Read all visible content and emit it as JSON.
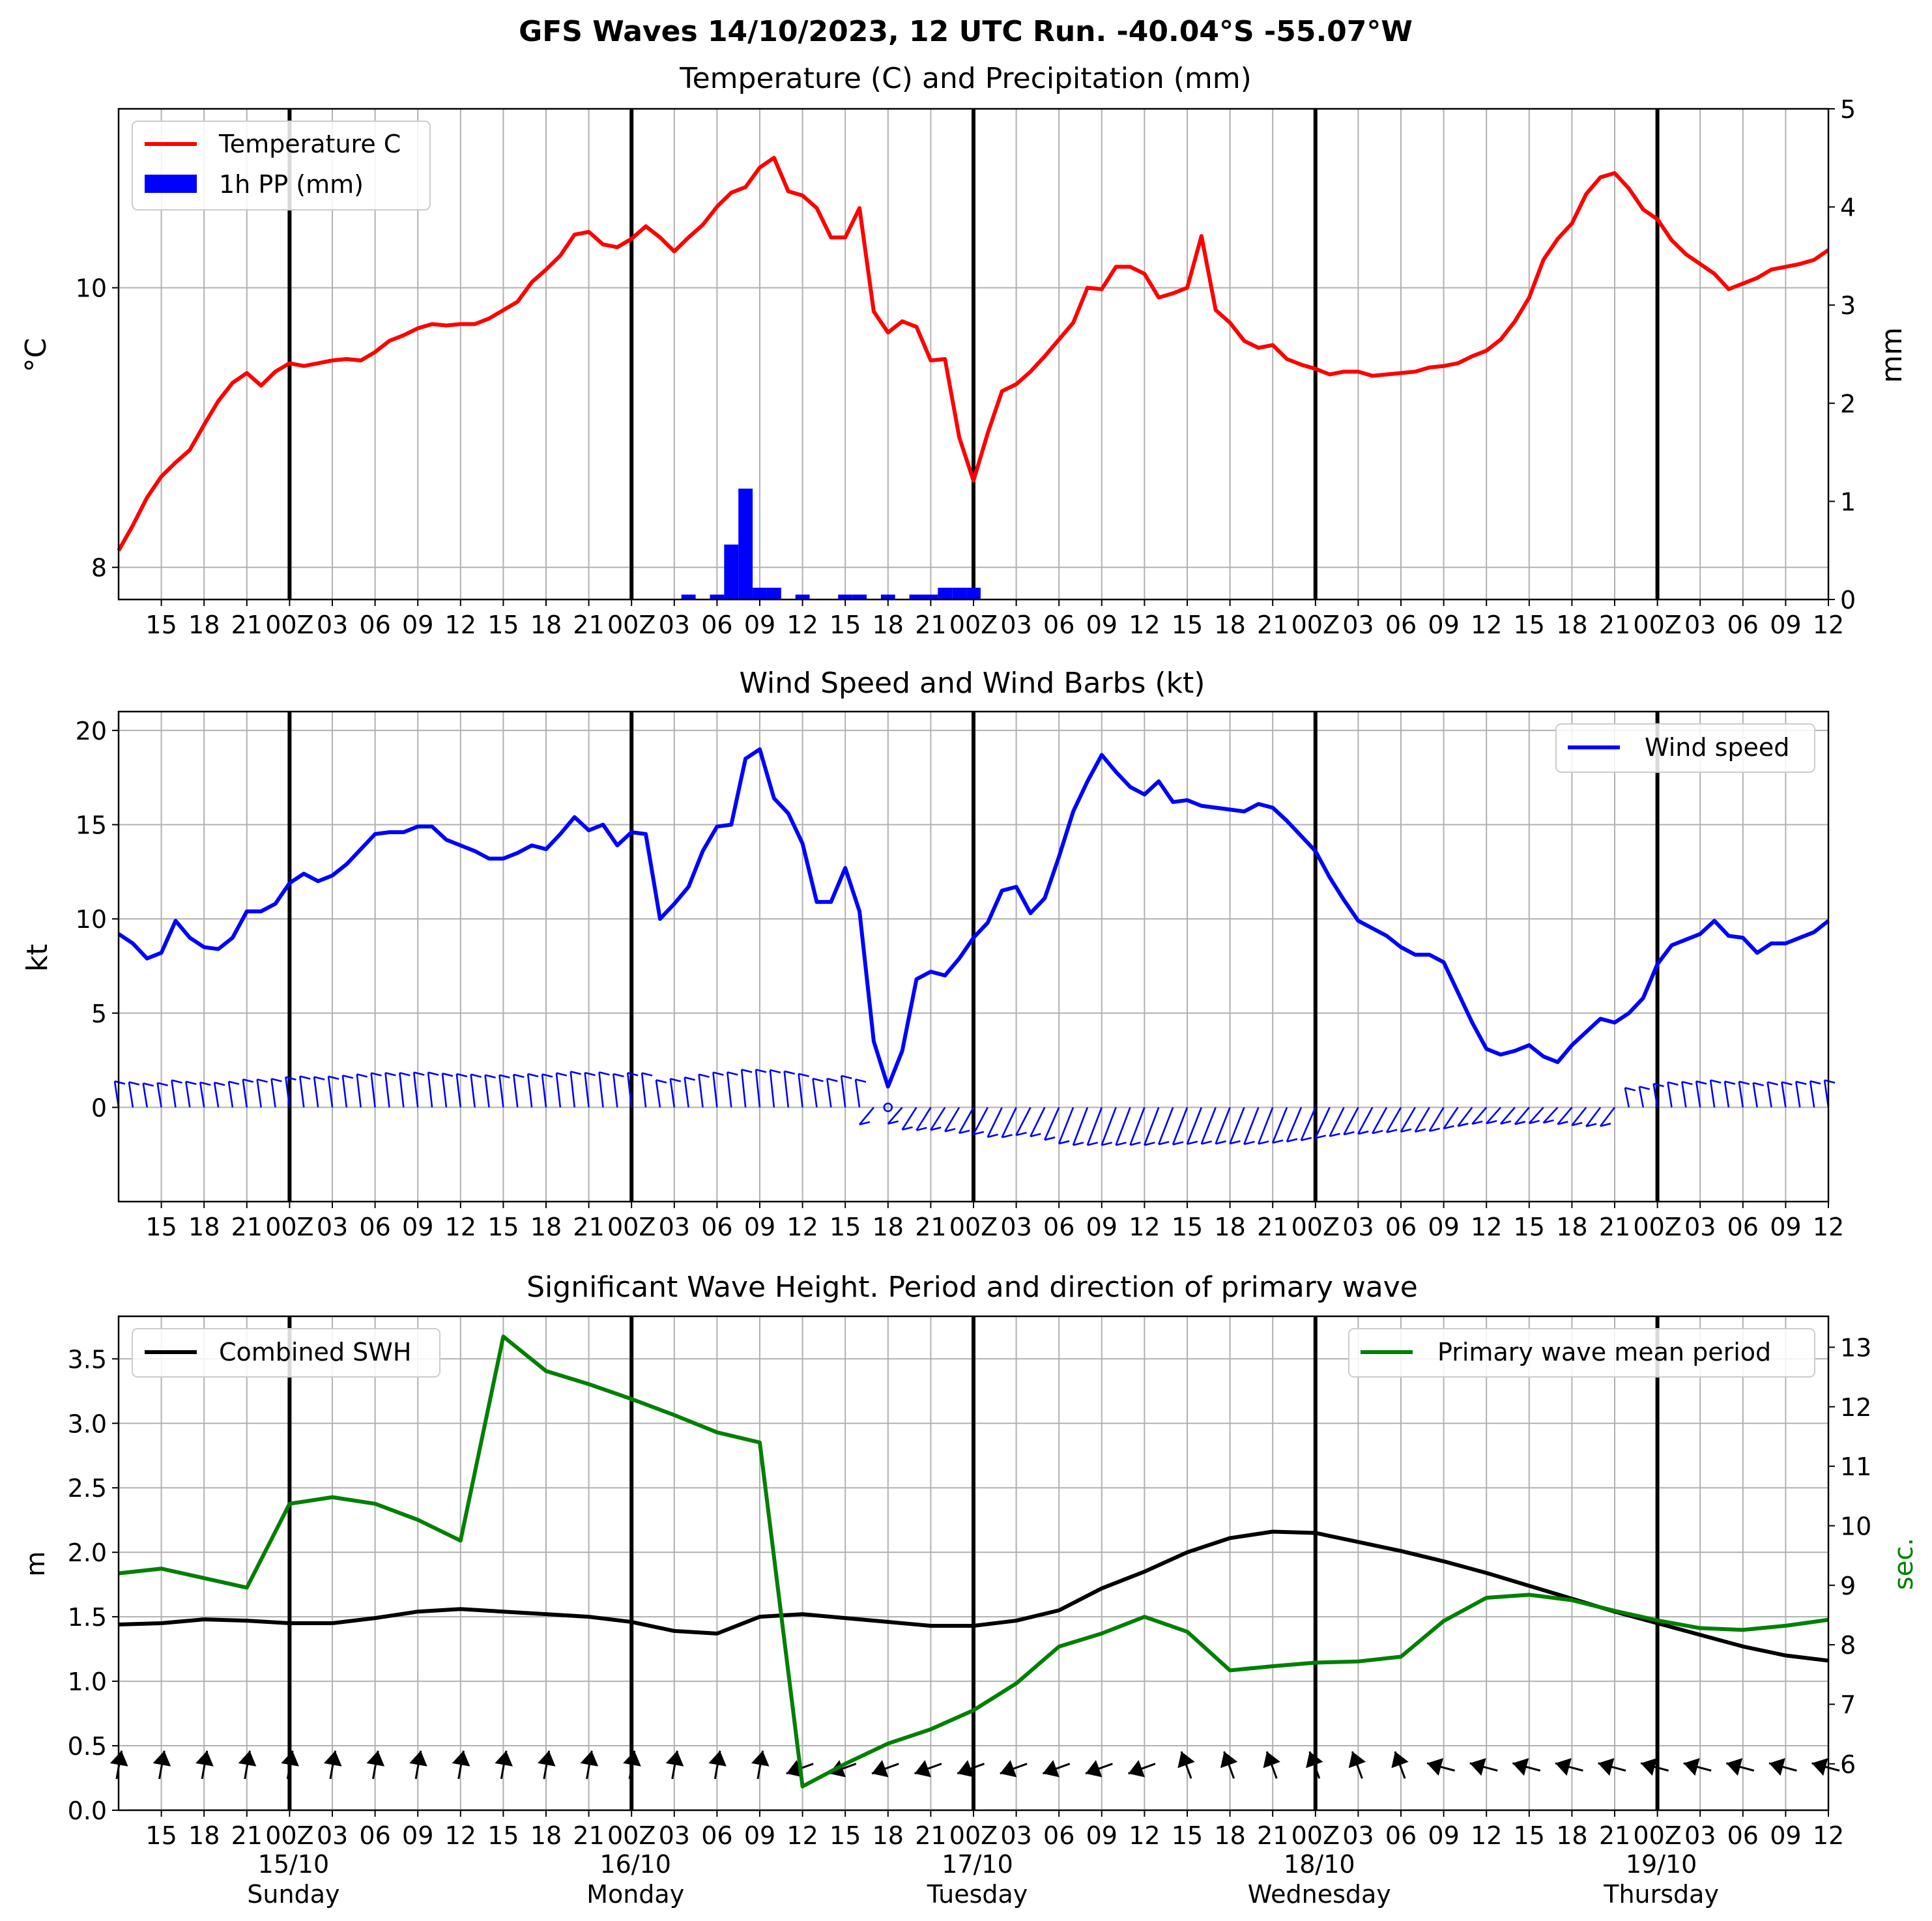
{
  "figure": {
    "suptitle": "GFS Waves 14/10/2023, 12 UTC Run. -40.04°S -55.07°W",
    "x_tick_labels": [
      "15",
      "18",
      "21",
      "00Z",
      "03",
      "06",
      "09",
      "12",
      "15",
      "18",
      "21",
      "00Z",
      "03",
      "06",
      "09",
      "12",
      "15",
      "18",
      "21",
      "00Z",
      "03",
      "06",
      "09",
      "12",
      "15",
      "18",
      "21",
      "00Z",
      "03",
      "06",
      "09",
      "12",
      "15",
      "18",
      "21",
      "00Z",
      "03",
      "06",
      "09",
      "12"
    ],
    "x_date_labels": [
      {
        "date": "15/10",
        "day": "Sunday"
      },
      {
        "date": "16/10",
        "day": "Monday"
      },
      {
        "date": "17/10",
        "day": "Tuesday"
      },
      {
        "date": "18/10",
        "day": "Wednesday"
      },
      {
        "date": "19/10",
        "day": "Thursday"
      }
    ]
  },
  "chart_data": [
    {
      "type": "line",
      "title": "Temperature (C) and Precipitation (mm)",
      "ylabel": "°C",
      "ylabel_right": "mm",
      "x_unit": "hours since 14/10/2023 12 UTC",
      "xlim": [
        12,
        132
      ],
      "ylim": [
        7.77,
        11.28
      ],
      "yticks": [
        8,
        10
      ],
      "ylim_right": [
        0,
        5
      ],
      "yticks_right": [
        0,
        1,
        2,
        3,
        4,
        5
      ],
      "legend": "upper-left",
      "grid": true,
      "series": [
        {
          "name": "Temperature C",
          "color": "#ff0000",
          "x": [
            12,
            13,
            14,
            15,
            16,
            17,
            18,
            19,
            20,
            21,
            22,
            23,
            24,
            25,
            26,
            27,
            28,
            29,
            30,
            31,
            32,
            33,
            34,
            35,
            36,
            37,
            38,
            39,
            40,
            41,
            42,
            43,
            44,
            45,
            46,
            47,
            48,
            49,
            50,
            51,
            52,
            53,
            54,
            55,
            56,
            57,
            58,
            59,
            60,
            61,
            62,
            63,
            64,
            65,
            66,
            67,
            68,
            69,
            70,
            71,
            72,
            73,
            74,
            75,
            76,
            77,
            78,
            79,
            80,
            81,
            82,
            83,
            84,
            85,
            86,
            87,
            88,
            89,
            90,
            91,
            92,
            93,
            94,
            95,
            96,
            97,
            98,
            99,
            100,
            101,
            102,
            103,
            104,
            105,
            106,
            107,
            108,
            109,
            110,
            111,
            112,
            113,
            114,
            115,
            116,
            117,
            118,
            119,
            120,
            121,
            122,
            123,
            124,
            125,
            126,
            127,
            128,
            129,
            130,
            131,
            132
          ],
          "values": [
            8.12,
            8.3,
            8.5,
            8.65,
            8.75,
            8.84,
            9.02,
            9.19,
            9.32,
            9.39,
            9.3,
            9.4,
            9.46,
            9.44,
            9.46,
            9.48,
            9.49,
            9.48,
            9.54,
            9.62,
            9.66,
            9.71,
            9.74,
            9.73,
            9.74,
            9.74,
            9.78,
            9.84,
            9.9,
            10.04,
            10.13,
            10.23,
            10.38,
            10.4,
            10.31,
            10.29,
            10.35,
            10.44,
            10.36,
            10.26,
            10.36,
            10.45,
            10.58,
            10.68,
            10.72,
            10.86,
            10.93,
            10.69,
            10.66,
            10.57,
            10.36,
            10.36,
            10.57,
            9.83,
            9.68,
            9.76,
            9.72,
            9.48,
            9.49,
            8.93,
            8.62,
            8.96,
            9.26,
            9.31,
            9.4,
            9.51,
            9.63,
            9.75,
            10.0,
            9.99,
            10.15,
            10.15,
            10.1,
            9.93,
            9.96,
            10.0,
            10.37,
            9.84,
            9.75,
            9.62,
            9.57,
            9.59,
            9.49,
            9.45,
            9.42,
            9.38,
            9.4,
            9.4,
            9.37,
            9.38,
            9.39,
            9.4,
            9.43,
            9.44,
            9.46,
            9.51,
            9.55,
            9.63,
            9.76,
            9.93,
            10.2,
            10.35,
            10.46,
            10.67,
            10.79,
            10.82,
            10.71,
            10.56,
            10.49,
            10.34,
            10.24,
            10.17,
            10.1,
            9.99,
            10.03,
            10.07,
            10.13,
            10.15,
            10.17,
            10.2,
            10.27
          ]
        }
      ],
      "bars": {
        "name": "1h PP (mm)",
        "color": "#0000ff",
        "x": [
          52,
          54,
          55,
          56,
          57,
          58,
          60,
          63,
          64,
          66,
          68,
          69,
          70,
          71,
          72
        ],
        "values": [
          0.05,
          0.05,
          0.56,
          1.13,
          0.12,
          0.12,
          0.05,
          0.05,
          0.05,
          0.05,
          0.05,
          0.05,
          0.12,
          0.12,
          0.12
        ]
      }
    },
    {
      "type": "line",
      "title": "Wind Speed and Wind Barbs (kt)",
      "ylabel": "kt",
      "x_unit": "hours since 14/10/2023 12 UTC",
      "xlim": [
        12,
        132
      ],
      "ylim": [
        -5,
        21
      ],
      "yticks": [
        0,
        5,
        10,
        15,
        20
      ],
      "legend": "upper-right",
      "grid": true,
      "series": [
        {
          "name": "Wind speed",
          "color": "#0000ff",
          "x": [
            12,
            13,
            14,
            15,
            16,
            17,
            18,
            19,
            20,
            21,
            22,
            23,
            24,
            25,
            26,
            27,
            28,
            29,
            30,
            31,
            32,
            33,
            34,
            35,
            36,
            37,
            38,
            39,
            40,
            41,
            42,
            43,
            44,
            45,
            46,
            47,
            48,
            49,
            50,
            51,
            52,
            53,
            54,
            55,
            56,
            57,
            58,
            59,
            60,
            61,
            62,
            63,
            64,
            65,
            66,
            67,
            68,
            69,
            70,
            71,
            72,
            73,
            74,
            75,
            76,
            77,
            78,
            79,
            80,
            81,
            82,
            83,
            84,
            85,
            86,
            87,
            88,
            89,
            90,
            91,
            92,
            93,
            94,
            95,
            96,
            97,
            98,
            99,
            100,
            101,
            102,
            103,
            104,
            105,
            106,
            107,
            108,
            109,
            110,
            111,
            112,
            113,
            114,
            115,
            116,
            117,
            118,
            119,
            120,
            121,
            122,
            123,
            124,
            125,
            126,
            127,
            128,
            129,
            130,
            131,
            132
          ],
          "values": [
            9.2,
            8.7,
            7.9,
            8.2,
            9.9,
            9.0,
            8.5,
            8.4,
            9.0,
            10.4,
            10.4,
            10.8,
            11.9,
            12.4,
            12.0,
            12.3,
            12.9,
            13.7,
            14.5,
            14.6,
            14.6,
            14.9,
            14.9,
            14.2,
            13.9,
            13.6,
            13.2,
            13.2,
            13.5,
            13.9,
            13.7,
            14.5,
            15.4,
            14.7,
            15.0,
            13.9,
            14.6,
            14.5,
            10.0,
            10.8,
            11.7,
            13.6,
            14.9,
            15.0,
            18.5,
            19.0,
            16.4,
            15.6,
            14.0,
            10.9,
            10.9,
            12.7,
            10.4,
            3.5,
            1.1,
            3.0,
            6.8,
            7.2,
            7.0,
            7.9,
            9.0,
            9.8,
            11.5,
            11.7,
            10.3,
            11.1,
            13.3,
            15.7,
            17.3,
            18.7,
            17.8,
            17.0,
            16.6,
            17.3,
            16.2,
            16.3,
            16.0,
            15.9,
            15.8,
            15.7,
            16.1,
            15.9,
            15.2,
            14.4,
            13.6,
            12.2,
            11.0,
            9.9,
            9.5,
            9.1,
            8.5,
            8.1,
            8.1,
            7.7,
            6.1,
            4.5,
            3.1,
            2.8,
            3.0,
            3.3,
            2.7,
            2.4,
            3.3,
            4.0,
            4.7,
            4.5,
            5.0,
            5.8,
            7.6,
            8.6,
            8.9,
            9.2,
            9.9,
            9.1,
            9.0,
            8.2,
            8.7,
            8.7,
            9.0,
            9.3,
            9.9
          ]
        }
      ]
    },
    {
      "type": "line",
      "title": "Significant Wave Height. Period and direction of primary wave",
      "ylabel": "m",
      "ylabel_right": "sec.",
      "x_unit": "hours since 14/10/2023 12 UTC",
      "xlim": [
        12,
        132
      ],
      "ylim": [
        0,
        3.83
      ],
      "yticks": [
        0.0,
        0.5,
        1.0,
        1.5,
        2.0,
        2.5,
        3.0,
        3.5
      ],
      "ylim_right": [
        5.22,
        13.52
      ],
      "yticks_right": [
        6,
        7,
        8,
        9,
        10,
        11,
        12,
        13
      ],
      "grid": true,
      "legends": [
        "upper-left",
        "upper-right"
      ],
      "series": [
        {
          "name": "Combined SWH",
          "color": "#000000",
          "x": [
            12,
            15,
            18,
            21,
            24,
            27,
            30,
            33,
            36,
            39,
            42,
            45,
            48,
            51,
            54,
            57,
            60,
            63,
            66,
            69,
            72,
            75,
            78,
            81,
            84,
            87,
            90,
            93,
            96,
            99,
            102,
            105,
            108,
            111,
            114,
            117,
            120,
            123,
            126,
            129,
            132
          ],
          "values": [
            1.44,
            1.45,
            1.48,
            1.47,
            1.45,
            1.45,
            1.49,
            1.54,
            1.56,
            1.54,
            1.52,
            1.5,
            1.46,
            1.39,
            1.37,
            1.5,
            1.52,
            1.49,
            1.46,
            1.43,
            1.43,
            1.47,
            1.55,
            1.72,
            1.85,
            2.0,
            2.11,
            2.16,
            2.15,
            2.08,
            2.01,
            1.93,
            1.84,
            1.74,
            1.64,
            1.54,
            1.45,
            1.36,
            1.27,
            1.2,
            1.16
          ]
        },
        {
          "name": "Primary wave mean period",
          "color": "#008000",
          "axis": "right",
          "x": [
            12,
            15,
            18,
            21,
            24,
            27,
            30,
            33,
            36,
            39,
            42,
            45,
            48,
            51,
            54,
            57,
            60,
            63,
            66,
            69,
            72,
            75,
            78,
            81,
            84,
            87,
            90,
            93,
            96,
            99,
            102,
            105,
            108,
            111,
            114,
            117,
            120,
            123,
            126,
            129,
            132
          ],
          "values": [
            9.2,
            9.28,
            9.12,
            8.96,
            10.37,
            10.48,
            10.37,
            10.1,
            9.75,
            13.18,
            12.6,
            12.38,
            12.13,
            11.86,
            11.57,
            11.4,
            5.62,
            6.0,
            6.34,
            6.58,
            6.9,
            7.35,
            7.97,
            8.19,
            8.47,
            8.22,
            7.57,
            7.64,
            7.7,
            7.72,
            7.8,
            8.4,
            8.79,
            8.84,
            8.75,
            8.57,
            8.41,
            8.28,
            8.25,
            8.32,
            8.42
          ]
        }
      ]
    }
  ]
}
